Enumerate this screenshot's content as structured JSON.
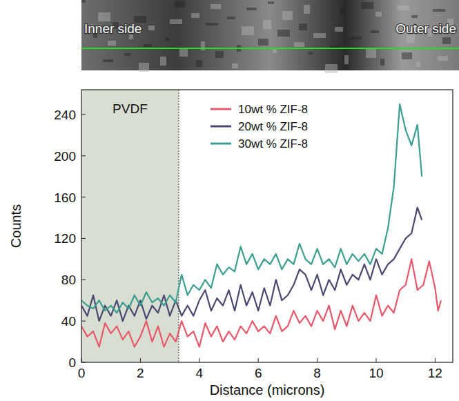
{
  "chart_data": {
    "type": "line",
    "header_image": {
      "left_label": "Inner side",
      "right_label": "Outer side"
    },
    "x_label": "Distance (microns)",
    "y_label": "Counts",
    "xlim": [
      0,
      12.6
    ],
    "ylim": [
      0,
      264
    ],
    "xticks": [
      0,
      2,
      4,
      6,
      8,
      10,
      12
    ],
    "yticks": [
      0,
      40,
      80,
      120,
      160,
      200,
      240
    ],
    "grid": false,
    "legend": "top",
    "regions": [
      {
        "label": "PVDF",
        "x": [
          0,
          3.3
        ]
      }
    ],
    "series": [
      {
        "name": "10wt % ZIF-8",
        "color": "#e8586a",
        "x": [
          0,
          0.2,
          0.4,
          0.6,
          0.8,
          1.0,
          1.2,
          1.4,
          1.6,
          1.8,
          2.0,
          2.2,
          2.4,
          2.6,
          2.8,
          3.0,
          3.2,
          3.4,
          3.6,
          3.8,
          4.0,
          4.2,
          4.4,
          4.6,
          4.8,
          5.0,
          5.2,
          5.4,
          5.6,
          5.8,
          6.0,
          6.2,
          6.4,
          6.6,
          6.8,
          7.0,
          7.2,
          7.4,
          7.6,
          7.8,
          8.0,
          8.2,
          8.4,
          8.6,
          8.8,
          9.0,
          9.2,
          9.4,
          9.6,
          9.8,
          10.0,
          10.2,
          10.4,
          10.6,
          10.8,
          11.0,
          11.2,
          11.4,
          11.6,
          11.8,
          12.0,
          12.1,
          12.2
        ],
        "values": [
          35,
          25,
          30,
          15,
          38,
          28,
          35,
          22,
          30,
          15,
          25,
          40,
          20,
          35,
          15,
          28,
          20,
          40,
          25,
          30,
          15,
          38,
          25,
          35,
          20,
          30,
          22,
          35,
          28,
          40,
          30,
          35,
          28,
          45,
          30,
          35,
          50,
          38,
          45,
          35,
          50,
          40,
          55,
          32,
          50,
          35,
          55,
          40,
          48,
          40,
          65,
          45,
          55,
          48,
          70,
          75,
          100,
          70,
          75,
          98,
          72,
          50,
          60
        ]
      },
      {
        "name": "20wt % ZIF-8",
        "color": "#4a4870",
        "x": [
          0,
          0.2,
          0.4,
          0.6,
          0.8,
          1.0,
          1.2,
          1.4,
          1.6,
          1.8,
          2.0,
          2.2,
          2.4,
          2.6,
          2.8,
          3.0,
          3.2,
          3.4,
          3.6,
          3.8,
          4.0,
          4.2,
          4.4,
          4.6,
          4.8,
          5.0,
          5.2,
          5.4,
          5.6,
          5.8,
          6.0,
          6.2,
          6.4,
          6.6,
          6.8,
          7.0,
          7.2,
          7.4,
          7.6,
          7.8,
          8.0,
          8.2,
          8.4,
          8.6,
          8.8,
          9.0,
          9.2,
          9.4,
          9.6,
          9.8,
          10.0,
          10.2,
          10.4,
          10.6,
          10.8,
          11.0,
          11.2,
          11.4,
          11.55
        ],
        "values": [
          55,
          45,
          65,
          40,
          55,
          45,
          60,
          40,
          55,
          45,
          60,
          42,
          55,
          48,
          65,
          45,
          60,
          45,
          55,
          45,
          60,
          70,
          50,
          62,
          55,
          70,
          50,
          75,
          55,
          68,
          50,
          72,
          55,
          80,
          60,
          65,
          75,
          90,
          85,
          70,
          85,
          65,
          80,
          70,
          90,
          75,
          85,
          80,
          95,
          80,
          100,
          85,
          95,
          100,
          110,
          120,
          125,
          150,
          138
        ]
      },
      {
        "name": "30wt % ZIF-8",
        "color": "#3a9e90",
        "x": [
          0,
          0.2,
          0.4,
          0.6,
          0.8,
          1.0,
          1.2,
          1.4,
          1.6,
          1.8,
          2.0,
          2.2,
          2.4,
          2.6,
          2.8,
          3.0,
          3.2,
          3.4,
          3.6,
          3.8,
          4.0,
          4.2,
          4.4,
          4.6,
          4.8,
          5.0,
          5.2,
          5.4,
          5.6,
          5.8,
          6.0,
          6.2,
          6.4,
          6.6,
          6.8,
          7.0,
          7.2,
          7.4,
          7.6,
          7.8,
          8.0,
          8.2,
          8.4,
          8.6,
          8.8,
          9.0,
          9.2,
          9.4,
          9.6,
          9.8,
          10.0,
          10.2,
          10.4,
          10.6,
          10.8,
          11.0,
          11.2,
          11.4,
          11.55
        ],
        "values": [
          60,
          55,
          52,
          60,
          50,
          55,
          48,
          58,
          52,
          65,
          55,
          68,
          58,
          62,
          55,
          65,
          58,
          85,
          65,
          75,
          70,
          80,
          72,
          95,
          85,
          92,
          88,
          112,
          95,
          105,
          90,
          100,
          95,
          105,
          90,
          100,
          95,
          115,
          100,
          95,
          110,
          95,
          100,
          92,
          110,
          95,
          105,
          98,
          105,
          95,
          110,
          105,
          130,
          170,
          250,
          225,
          210,
          230,
          180
        ]
      }
    ]
  }
}
